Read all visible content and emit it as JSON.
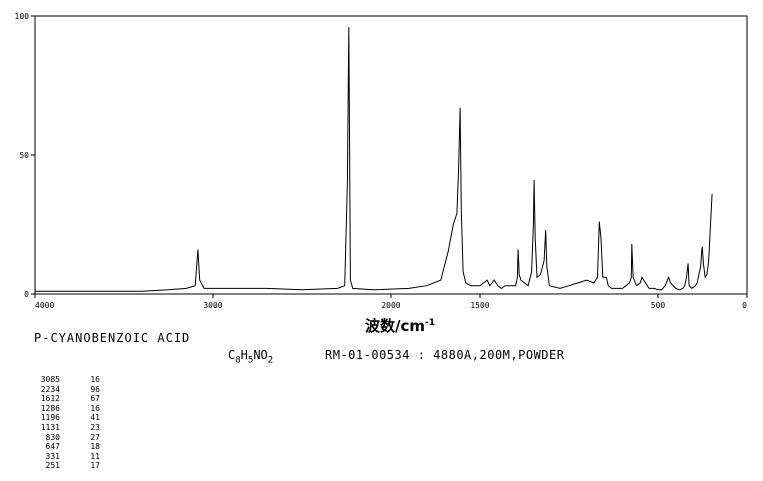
{
  "chart_data": {
    "type": "line",
    "title": "",
    "xlabel_main": "波数/cm",
    "xlabel_sup": "-1",
    "ylabel": "",
    "xlim": [
      4000,
      0
    ],
    "ylim": [
      0,
      100
    ],
    "xticks": [
      4000,
      3000,
      2000,
      1500,
      500,
      0
    ],
    "yticks": [
      0,
      50,
      100
    ],
    "grid": false,
    "series": [
      {
        "points": [
          [
            4000,
            1
          ],
          [
            3800,
            1
          ],
          [
            3600,
            1
          ],
          [
            3400,
            1
          ],
          [
            3250,
            1.5
          ],
          [
            3150,
            2
          ],
          [
            3100,
            3
          ],
          [
            3085,
            16
          ],
          [
            3075,
            5
          ],
          [
            3050,
            2
          ],
          [
            2900,
            2
          ],
          [
            2700,
            2
          ],
          [
            2500,
            1.5
          ],
          [
            2300,
            2
          ],
          [
            2260,
            3
          ],
          [
            2245,
            40
          ],
          [
            2237,
            96
          ],
          [
            2234,
            70
          ],
          [
            2228,
            5
          ],
          [
            2215,
            2
          ],
          [
            2100,
            1.5
          ],
          [
            1900,
            2
          ],
          [
            1800,
            3
          ],
          [
            1720,
            5
          ],
          [
            1680,
            15
          ],
          [
            1650,
            25
          ],
          [
            1630,
            29
          ],
          [
            1620,
            45
          ],
          [
            1612,
            67
          ],
          [
            1605,
            30
          ],
          [
            1595,
            8
          ],
          [
            1580,
            4
          ],
          [
            1550,
            3
          ],
          [
            1500,
            3
          ],
          [
            1480,
            4
          ],
          [
            1460,
            5
          ],
          [
            1445,
            3
          ],
          [
            1420,
            5
          ],
          [
            1400,
            3
          ],
          [
            1380,
            2
          ],
          [
            1360,
            3
          ],
          [
            1300,
            3
          ],
          [
            1290,
            6
          ],
          [
            1286,
            16
          ],
          [
            1280,
            7
          ],
          [
            1270,
            5
          ],
          [
            1250,
            4
          ],
          [
            1230,
            3
          ],
          [
            1210,
            8
          ],
          [
            1200,
            25
          ],
          [
            1196,
            41
          ],
          [
            1190,
            20
          ],
          [
            1180,
            6
          ],
          [
            1160,
            7
          ],
          [
            1140,
            12
          ],
          [
            1131,
            23
          ],
          [
            1125,
            10
          ],
          [
            1110,
            3
          ],
          [
            1050,
            2
          ],
          [
            1000,
            3
          ],
          [
            950,
            4
          ],
          [
            900,
            5
          ],
          [
            860,
            4
          ],
          [
            840,
            6
          ],
          [
            830,
            26
          ],
          [
            820,
            20
          ],
          [
            810,
            6
          ],
          [
            790,
            6
          ],
          [
            780,
            3
          ],
          [
            760,
            2
          ],
          [
            720,
            2
          ],
          [
            700,
            2
          ],
          [
            680,
            3
          ],
          [
            660,
            4
          ],
          [
            650,
            6
          ],
          [
            647,
            18
          ],
          [
            640,
            6
          ],
          [
            620,
            3
          ],
          [
            600,
            4
          ],
          [
            590,
            6
          ],
          [
            570,
            4
          ],
          [
            550,
            2
          ],
          [
            520,
            2
          ],
          [
            500,
            1.5
          ],
          [
            480,
            1.5
          ],
          [
            460,
            3
          ],
          [
            440,
            6
          ],
          [
            430,
            4
          ],
          [
            400,
            2
          ],
          [
            380,
            1.5
          ],
          [
            360,
            2
          ],
          [
            350,
            3
          ],
          [
            340,
            6
          ],
          [
            331,
            11
          ],
          [
            325,
            3
          ],
          [
            310,
            2
          ],
          [
            290,
            3
          ],
          [
            280,
            4
          ],
          [
            270,
            7
          ],
          [
            260,
            10
          ],
          [
            255,
            15
          ],
          [
            251,
            17
          ],
          [
            245,
            11
          ],
          [
            235,
            6
          ],
          [
            225,
            7
          ],
          [
            215,
            12
          ],
          [
            205,
            25
          ],
          [
            196,
            36
          ]
        ]
      }
    ]
  },
  "compound": "P-CYANOBENZOIC ACID",
  "formula": {
    "c": "C",
    "c_n": "8",
    "h": "H",
    "h_n": "5",
    "rest": "NO",
    "o_n": "2"
  },
  "meta": "RM-01-00534 : 4880A,200M,POWDER",
  "peak_table": [
    [
      "3085",
      "16"
    ],
    [
      "2234",
      "96"
    ],
    [
      "1612",
      "67"
    ],
    [
      "1286",
      "16"
    ],
    [
      "1196",
      "41"
    ],
    [
      "1131",
      "23"
    ],
    [
      "830",
      "27"
    ],
    [
      "647",
      "18"
    ],
    [
      "331",
      "11"
    ],
    [
      "251",
      "17"
    ]
  ]
}
